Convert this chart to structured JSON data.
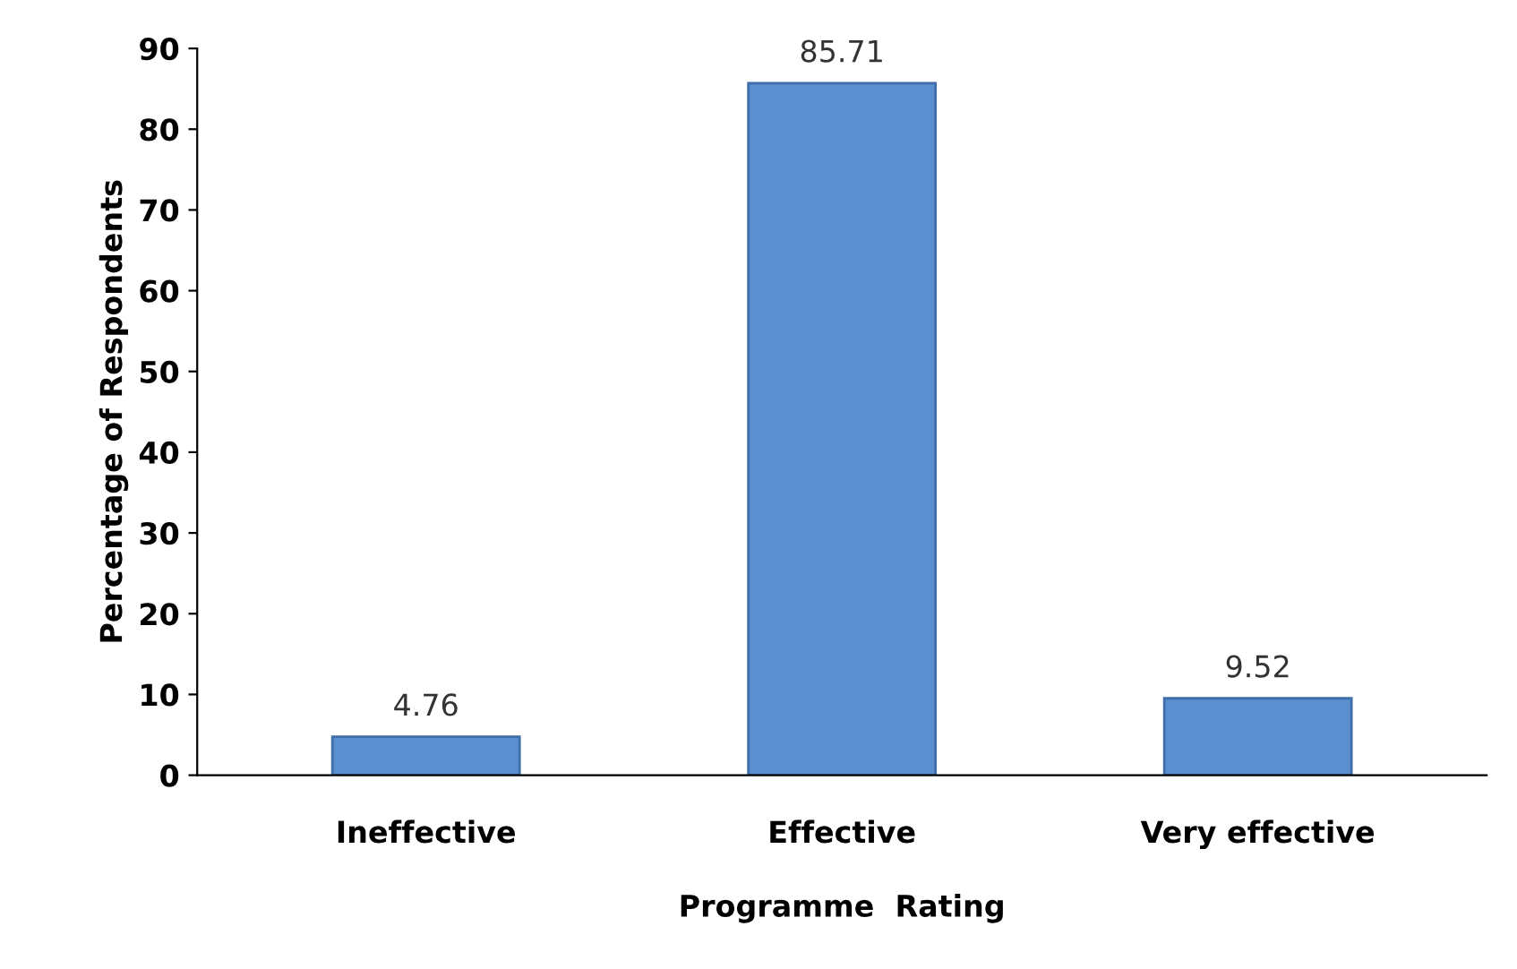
{
  "chart_data": {
    "type": "bar",
    "categories": [
      "Ineffective",
      "Effective",
      "Very effective"
    ],
    "values": [
      4.76,
      85.71,
      9.52
    ],
    "color": "#5a8fd0",
    "xlabel": "Programme  Rating",
    "ylabel": "Percentage of Respondents",
    "ylim": [
      0,
      90
    ],
    "yticks": [
      0,
      10,
      20,
      30,
      40,
      50,
      60,
      70,
      80,
      90
    ],
    "data_labels": true,
    "grid": false
  }
}
